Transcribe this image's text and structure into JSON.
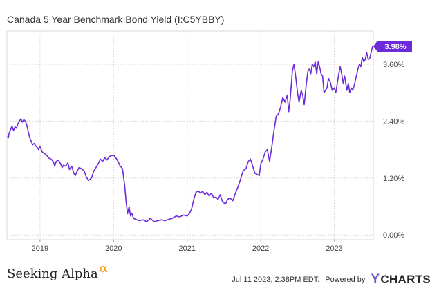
{
  "chart_data": {
    "type": "line",
    "title": "Canada 5 Year Benchmark Bond Yield (I:C5YBBY)",
    "x_ticks": [
      "2019",
      "2020",
      "2021",
      "2022",
      "2023"
    ],
    "y_ticks": [
      "0.00%",
      "1.20%",
      "2.40%",
      "3.60%"
    ],
    "y_tick_values": [
      0,
      1.2,
      2.4,
      3.6
    ],
    "ylim": [
      -0.1,
      4.3
    ],
    "xlim": [
      2018.55,
      2023.53
    ],
    "grid": true,
    "line_color": "#6c2bd9",
    "last_value_label": "3.98%",
    "series": [
      {
        "values": [
          [
            2018.55,
            2.07
          ],
          [
            2018.57,
            2.05
          ],
          [
            2018.58,
            2.15
          ],
          [
            2018.6,
            2.22
          ],
          [
            2018.62,
            2.3
          ],
          [
            2018.64,
            2.2
          ],
          [
            2018.66,
            2.28
          ],
          [
            2018.68,
            2.25
          ],
          [
            2018.7,
            2.35
          ],
          [
            2018.72,
            2.4
          ],
          [
            2018.74,
            2.45
          ],
          [
            2018.76,
            2.38
          ],
          [
            2018.78,
            2.43
          ],
          [
            2018.8,
            2.4
          ],
          [
            2018.82,
            2.32
          ],
          [
            2018.84,
            2.18
          ],
          [
            2018.86,
            2.05
          ],
          [
            2018.88,
            1.98
          ],
          [
            2018.9,
            1.9
          ],
          [
            2018.92,
            1.93
          ],
          [
            2018.94,
            1.88
          ],
          [
            2018.96,
            1.85
          ],
          [
            2018.98,
            1.8
          ],
          [
            2019.0,
            1.86
          ],
          [
            2019.03,
            1.75
          ],
          [
            2019.06,
            1.72
          ],
          [
            2019.09,
            1.68
          ],
          [
            2019.12,
            1.62
          ],
          [
            2019.15,
            1.6
          ],
          [
            2019.18,
            1.55
          ],
          [
            2019.2,
            1.45
          ],
          [
            2019.22,
            1.55
          ],
          [
            2019.25,
            1.58
          ],
          [
            2019.28,
            1.5
          ],
          [
            2019.3,
            1.42
          ],
          [
            2019.32,
            1.47
          ],
          [
            2019.35,
            1.45
          ],
          [
            2019.38,
            1.52
          ],
          [
            2019.4,
            1.38
          ],
          [
            2019.43,
            1.45
          ],
          [
            2019.46,
            1.3
          ],
          [
            2019.48,
            1.25
          ],
          [
            2019.5,
            1.33
          ],
          [
            2019.53,
            1.42
          ],
          [
            2019.56,
            1.4
          ],
          [
            2019.6,
            1.35
          ],
          [
            2019.63,
            1.22
          ],
          [
            2019.66,
            1.15
          ],
          [
            2019.7,
            1.2
          ],
          [
            2019.73,
            1.35
          ],
          [
            2019.76,
            1.42
          ],
          [
            2019.79,
            1.5
          ],
          [
            2019.82,
            1.6
          ],
          [
            2019.85,
            1.55
          ],
          [
            2019.88,
            1.63
          ],
          [
            2019.91,
            1.58
          ],
          [
            2019.94,
            1.65
          ],
          [
            2019.97,
            1.67
          ],
          [
            2020.0,
            1.68
          ],
          [
            2020.03,
            1.63
          ],
          [
            2020.06,
            1.55
          ],
          [
            2020.09,
            1.45
          ],
          [
            2020.12,
            1.4
          ],
          [
            2020.15,
            1.05
          ],
          [
            2020.17,
            0.7
          ],
          [
            2020.19,
            0.45
          ],
          [
            2020.21,
            0.6
          ],
          [
            2020.23,
            0.4
          ],
          [
            2020.25,
            0.45
          ],
          [
            2020.27,
            0.35
          ],
          [
            2020.3,
            0.33
          ],
          [
            2020.35,
            0.3
          ],
          [
            2020.4,
            0.32
          ],
          [
            2020.45,
            0.28
          ],
          [
            2020.5,
            0.35
          ],
          [
            2020.55,
            0.28
          ],
          [
            2020.6,
            0.3
          ],
          [
            2020.65,
            0.32
          ],
          [
            2020.7,
            0.3
          ],
          [
            2020.75,
            0.33
          ],
          [
            2020.8,
            0.35
          ],
          [
            2020.85,
            0.4
          ],
          [
            2020.9,
            0.38
          ],
          [
            2020.95,
            0.42
          ],
          [
            2021.0,
            0.4
          ],
          [
            2021.03,
            0.45
          ],
          [
            2021.06,
            0.55
          ],
          [
            2021.09,
            0.75
          ],
          [
            2021.12,
            0.9
          ],
          [
            2021.15,
            0.93
          ],
          [
            2021.18,
            0.88
          ],
          [
            2021.21,
            0.92
          ],
          [
            2021.24,
            0.85
          ],
          [
            2021.27,
            0.9
          ],
          [
            2021.3,
            0.82
          ],
          [
            2021.33,
            0.88
          ],
          [
            2021.36,
            0.78
          ],
          [
            2021.39,
            0.8
          ],
          [
            2021.42,
            0.75
          ],
          [
            2021.45,
            0.85
          ],
          [
            2021.48,
            0.7
          ],
          [
            2021.52,
            0.65
          ],
          [
            2021.55,
            0.75
          ],
          [
            2021.58,
            0.78
          ],
          [
            2021.62,
            0.72
          ],
          [
            2021.66,
            0.9
          ],
          [
            2021.7,
            1.05
          ],
          [
            2021.73,
            1.2
          ],
          [
            2021.76,
            1.35
          ],
          [
            2021.8,
            1.4
          ],
          [
            2021.83,
            1.55
          ],
          [
            2021.86,
            1.6
          ],
          [
            2021.89,
            1.45
          ],
          [
            2021.92,
            1.3
          ],
          [
            2021.95,
            1.28
          ],
          [
            2021.98,
            1.25
          ],
          [
            2022.0,
            1.5
          ],
          [
            2022.03,
            1.6
          ],
          [
            2022.06,
            1.75
          ],
          [
            2022.09,
            1.8
          ],
          [
            2022.12,
            1.55
          ],
          [
            2022.15,
            1.85
          ],
          [
            2022.18,
            2.2
          ],
          [
            2022.21,
            2.5
          ],
          [
            2022.24,
            2.55
          ],
          [
            2022.27,
            2.7
          ],
          [
            2022.3,
            2.9
          ],
          [
            2022.33,
            2.8
          ],
          [
            2022.36,
            2.95
          ],
          [
            2022.38,
            2.6
          ],
          [
            2022.4,
            2.85
          ],
          [
            2022.43,
            3.45
          ],
          [
            2022.45,
            3.6
          ],
          [
            2022.47,
            3.4
          ],
          [
            2022.5,
            3.0
          ],
          [
            2022.52,
            2.8
          ],
          [
            2022.55,
            3.05
          ],
          [
            2022.57,
            2.95
          ],
          [
            2022.59,
            2.75
          ],
          [
            2022.62,
            3.2
          ],
          [
            2022.64,
            3.45
          ],
          [
            2022.66,
            3.5
          ],
          [
            2022.68,
            3.4
          ],
          [
            2022.7,
            3.6
          ],
          [
            2022.72,
            3.55
          ],
          [
            2022.74,
            3.65
          ],
          [
            2022.76,
            3.4
          ],
          [
            2022.78,
            3.65
          ],
          [
            2022.8,
            3.55
          ],
          [
            2022.82,
            3.4
          ],
          [
            2022.84,
            3.35
          ],
          [
            2022.86,
            3.0
          ],
          [
            2022.88,
            3.05
          ],
          [
            2022.9,
            3.1
          ],
          [
            2022.92,
            3.3
          ],
          [
            2022.95,
            3.2
          ],
          [
            2022.97,
            3.05
          ],
          [
            2023.0,
            3.1
          ],
          [
            2023.02,
            3.0
          ],
          [
            2023.04,
            3.2
          ],
          [
            2023.06,
            3.4
          ],
          [
            2023.08,
            3.55
          ],
          [
            2023.1,
            3.4
          ],
          [
            2023.12,
            3.2
          ],
          [
            2023.14,
            3.35
          ],
          [
            2023.17,
            3.05
          ],
          [
            2023.19,
            3.2
          ],
          [
            2023.21,
            3.0
          ],
          [
            2023.23,
            3.1
          ],
          [
            2023.25,
            3.05
          ],
          [
            2023.27,
            3.15
          ],
          [
            2023.3,
            3.35
          ],
          [
            2023.32,
            3.5
          ],
          [
            2023.34,
            3.6
          ],
          [
            2023.36,
            3.55
          ],
          [
            2023.38,
            3.75
          ],
          [
            2023.4,
            3.65
          ],
          [
            2023.42,
            3.7
          ],
          [
            2023.44,
            3.85
          ],
          [
            2023.46,
            3.7
          ],
          [
            2023.48,
            3.72
          ],
          [
            2023.5,
            3.85
          ],
          [
            2023.52,
            3.98
          ]
        ]
      }
    ]
  },
  "footer": {
    "brand": "Seeking Alpha",
    "brand_mark": "α",
    "timestamp": "Jul 11 2023, 2:38PM EDT.",
    "powered_by": "Powered by",
    "provider_y": "Y",
    "provider_rest": "CHARTS"
  }
}
